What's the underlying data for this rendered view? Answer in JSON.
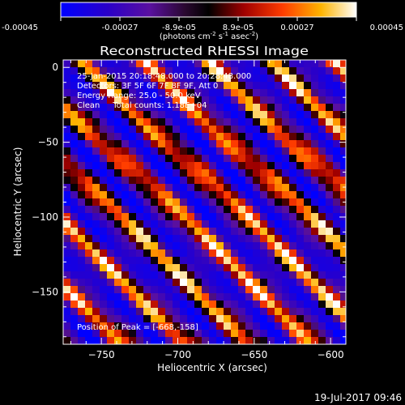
{
  "colorbar": {
    "ticks": [
      "-0.00045",
      "-0.00027",
      "-8.9e-05",
      "8.9e-05",
      "0.00027",
      "0.00045"
    ],
    "unit_main": "(photons cm",
    "unit_exp1": "-2",
    "unit_mid": " s",
    "unit_exp2": "-1",
    "unit_tail": " asec",
    "unit_exp3": "-2",
    "unit_end": ")"
  },
  "title": "Reconstructed RHESSI Image",
  "annotation": {
    "line1": "25-Jan-2015 20:18:48.000 to 20:28:48.000",
    "line2": "Detectors: 3F 5F 6F 7F 8F 9F, Att 0",
    "line3": "Energy Range: 25.0 - 50.0 keV",
    "line4": "Clean     Total counts: 1.18E+04",
    "peak": "Position of Peak = [-668,-158]"
  },
  "timestamp": "19-Jul-2017 09:46",
  "chart_data": {
    "type": "heatmap",
    "xlabel": "Heliocentric X (arcsec)",
    "ylabel": "Heliocentric Y (arcsec)",
    "xlim": [
      -775,
      -590
    ],
    "ylim": [
      -185,
      5
    ],
    "xticks": [
      -750,
      -700,
      -650,
      -600
    ],
    "yticks": [
      0,
      -50,
      -100,
      -150
    ],
    "colorbar_range": [
      -0.00045,
      0.00045
    ],
    "peak_position": [
      -668,
      -158
    ],
    "colormap": [
      "#0000ff",
      "#4b0fa8",
      "#6e2a96",
      "#000000",
      "#b41414",
      "#ff5000",
      "#ffb400",
      "#ffffff"
    ]
  }
}
